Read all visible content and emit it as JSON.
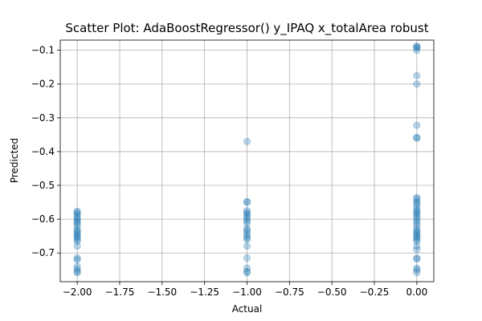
{
  "chart_data": {
    "type": "scatter",
    "title": "Scatter Plot: AdaBoostRegressor() y_IPAQ x_totalArea robust",
    "xlabel": "Actual",
    "ylabel": "Predicted",
    "xlim": [
      -2.1,
      0.1
    ],
    "ylim": [
      -0.785,
      -0.07
    ],
    "grid": true,
    "color": "#1f77b4",
    "alpha": 0.3,
    "x_ticks": [
      -2.0,
      -1.75,
      -1.5,
      -1.25,
      -1.0,
      -0.75,
      -0.5,
      -0.25,
      0.0
    ],
    "x_tick_labels": [
      "−2.00",
      "−1.75",
      "−1.50",
      "−1.25",
      "−1.00",
      "−0.75",
      "−0.50",
      "−0.25",
      "0.00"
    ],
    "y_ticks": [
      -0.1,
      -0.2,
      -0.3,
      -0.4,
      -0.5,
      -0.6,
      -0.7
    ],
    "y_tick_labels": [
      "−0.1",
      "−0.2",
      "−0.3",
      "−0.4",
      "−0.5",
      "−0.6",
      "−0.7"
    ],
    "points": [
      {
        "x": -2.0,
        "y": -0.577
      },
      {
        "x": -2.0,
        "y": -0.58
      },
      {
        "x": -2.0,
        "y": -0.585
      },
      {
        "x": -2.0,
        "y": -0.592
      },
      {
        "x": -2.0,
        "y": -0.598
      },
      {
        "x": -2.0,
        "y": -0.603
      },
      {
        "x": -2.0,
        "y": -0.608
      },
      {
        "x": -2.0,
        "y": -0.612
      },
      {
        "x": -2.0,
        "y": -0.62
      },
      {
        "x": -2.0,
        "y": -0.63
      },
      {
        "x": -2.0,
        "y": -0.635
      },
      {
        "x": -2.0,
        "y": -0.64
      },
      {
        "x": -2.0,
        "y": -0.645
      },
      {
        "x": -2.0,
        "y": -0.65
      },
      {
        "x": -2.0,
        "y": -0.655
      },
      {
        "x": -2.0,
        "y": -0.66
      },
      {
        "x": -2.0,
        "y": -0.665
      },
      {
        "x": -2.0,
        "y": -0.68
      },
      {
        "x": -2.0,
        "y": -0.715
      },
      {
        "x": -2.0,
        "y": -0.72
      },
      {
        "x": -2.0,
        "y": -0.74
      },
      {
        "x": -2.0,
        "y": -0.748
      },
      {
        "x": -2.0,
        "y": -0.755
      },
      {
        "x": -2.0,
        "y": -0.758
      },
      {
        "x": -1.0,
        "y": -0.37
      },
      {
        "x": -1.0,
        "y": -0.548
      },
      {
        "x": -1.0,
        "y": -0.55
      },
      {
        "x": -1.0,
        "y": -0.575
      },
      {
        "x": -1.0,
        "y": -0.58
      },
      {
        "x": -1.0,
        "y": -0.585
      },
      {
        "x": -1.0,
        "y": -0.592
      },
      {
        "x": -1.0,
        "y": -0.598
      },
      {
        "x": -1.0,
        "y": -0.605
      },
      {
        "x": -1.0,
        "y": -0.612
      },
      {
        "x": -1.0,
        "y": -0.628
      },
      {
        "x": -1.0,
        "y": -0.633
      },
      {
        "x": -1.0,
        "y": -0.64
      },
      {
        "x": -1.0,
        "y": -0.648
      },
      {
        "x": -1.0,
        "y": -0.655
      },
      {
        "x": -1.0,
        "y": -0.66
      },
      {
        "x": -1.0,
        "y": -0.68
      },
      {
        "x": -1.0,
        "y": -0.715
      },
      {
        "x": -1.0,
        "y": -0.745
      },
      {
        "x": -1.0,
        "y": -0.755
      },
      {
        "x": -1.0,
        "y": -0.758
      },
      {
        "x": 0.0,
        "y": -0.088
      },
      {
        "x": 0.0,
        "y": -0.09
      },
      {
        "x": 0.0,
        "y": -0.092
      },
      {
        "x": 0.0,
        "y": -0.1
      },
      {
        "x": 0.0,
        "y": -0.175
      },
      {
        "x": 0.0,
        "y": -0.2
      },
      {
        "x": 0.0,
        "y": -0.322
      },
      {
        "x": 0.0,
        "y": -0.358
      },
      {
        "x": 0.0,
        "y": -0.36
      },
      {
        "x": 0.0,
        "y": -0.536
      },
      {
        "x": 0.0,
        "y": -0.54
      },
      {
        "x": 0.0,
        "y": -0.548
      },
      {
        "x": 0.0,
        "y": -0.553
      },
      {
        "x": 0.0,
        "y": -0.56
      },
      {
        "x": 0.0,
        "y": -0.57
      },
      {
        "x": 0.0,
        "y": -0.575
      },
      {
        "x": 0.0,
        "y": -0.58
      },
      {
        "x": 0.0,
        "y": -0.585
      },
      {
        "x": 0.0,
        "y": -0.592
      },
      {
        "x": 0.0,
        "y": -0.598
      },
      {
        "x": 0.0,
        "y": -0.605
      },
      {
        "x": 0.0,
        "y": -0.612
      },
      {
        "x": 0.0,
        "y": -0.62
      },
      {
        "x": 0.0,
        "y": -0.63
      },
      {
        "x": 0.0,
        "y": -0.635
      },
      {
        "x": 0.0,
        "y": -0.64
      },
      {
        "x": 0.0,
        "y": -0.645
      },
      {
        "x": 0.0,
        "y": -0.65
      },
      {
        "x": 0.0,
        "y": -0.655
      },
      {
        "x": 0.0,
        "y": -0.66
      },
      {
        "x": 0.0,
        "y": -0.665
      },
      {
        "x": 0.0,
        "y": -0.68
      },
      {
        "x": 0.0,
        "y": -0.69
      },
      {
        "x": 0.0,
        "y": -0.715
      },
      {
        "x": 0.0,
        "y": -0.718
      },
      {
        "x": 0.0,
        "y": -0.745
      },
      {
        "x": 0.0,
        "y": -0.75
      },
      {
        "x": 0.0,
        "y": -0.758
      }
    ]
  }
}
